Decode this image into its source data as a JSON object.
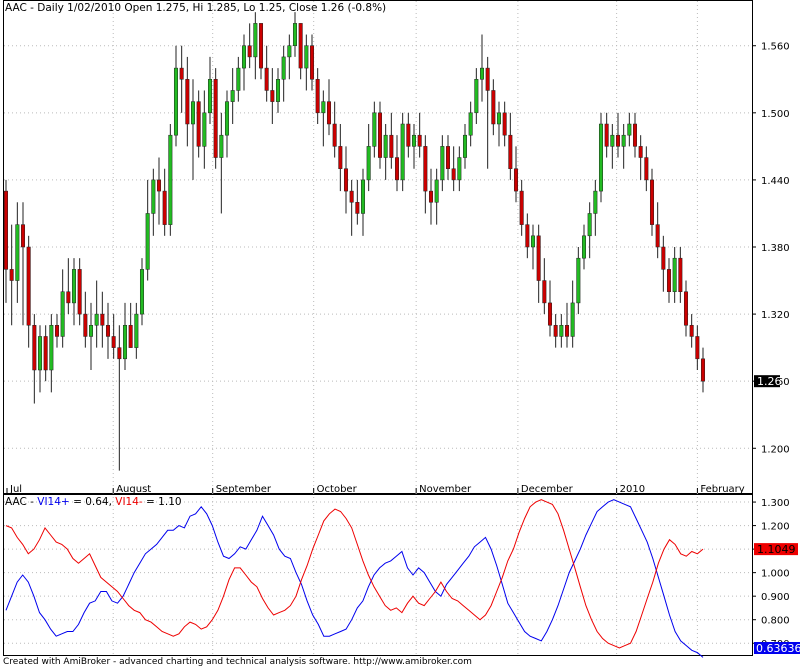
{
  "price_title": "AAC - Daily 1/02/2010 Open 1.275, Hi 1.285, Lo 1.25, Close 1.26 (-0.8%)",
  "vi_title": {
    "ticker": "AAC - ",
    "plus_label": "VI14+",
    "plus_value": " = 0.64, ",
    "minus_label": "VI14-",
    "minus_value": " = 1.10"
  },
  "footer": "Created with AmiBroker - advanced charting and technical analysis software. http://www.amibroker.com",
  "colors": {
    "up": "#22bb22",
    "down": "#cc0000",
    "vi_plus": "#0000ee",
    "vi_minus": "#ee0000",
    "grid": "#bbbbbb"
  },
  "chart_data": [
    {
      "type": "candlestick",
      "title": "AAC - Daily 1/02/2010 Open 1.275, Hi 1.285, Lo 1.25, Close 1.26 (-0.8%)",
      "ylim": [
        1.16,
        1.6
      ],
      "y_ticks": [
        "1.200",
        "1.260",
        "1.320",
        "1.380",
        "1.440",
        "1.500",
        "1.560"
      ],
      "x_labels": [
        "Jul",
        "August",
        "September",
        "October",
        "November",
        "December",
        "2010",
        "February"
      ],
      "last_price_label": "1.26",
      "grid": true,
      "ohlc": [
        [
          1.43,
          1.44,
          1.33,
          1.36
        ],
        [
          1.36,
          1.4,
          1.31,
          1.35
        ],
        [
          1.35,
          1.42,
          1.33,
          1.4
        ],
        [
          1.4,
          1.42,
          1.31,
          1.38
        ],
        [
          1.38,
          1.39,
          1.29,
          1.31
        ],
        [
          1.31,
          1.32,
          1.24,
          1.27
        ],
        [
          1.27,
          1.31,
          1.25,
          1.3
        ],
        [
          1.3,
          1.31,
          1.26,
          1.27
        ],
        [
          1.27,
          1.32,
          1.25,
          1.31
        ],
        [
          1.31,
          1.32,
          1.29,
          1.3
        ],
        [
          1.3,
          1.36,
          1.29,
          1.34
        ],
        [
          1.34,
          1.37,
          1.32,
          1.33
        ],
        [
          1.33,
          1.37,
          1.31,
          1.36
        ],
        [
          1.36,
          1.37,
          1.31,
          1.32
        ],
        [
          1.32,
          1.34,
          1.29,
          1.3
        ],
        [
          1.3,
          1.33,
          1.27,
          1.31
        ],
        [
          1.31,
          1.35,
          1.29,
          1.32
        ],
        [
          1.32,
          1.34,
          1.29,
          1.31
        ],
        [
          1.31,
          1.33,
          1.28,
          1.3
        ],
        [
          1.3,
          1.32,
          1.28,
          1.29
        ],
        [
          1.29,
          1.31,
          1.18,
          1.28
        ],
        [
          1.28,
          1.33,
          1.27,
          1.31
        ],
        [
          1.31,
          1.33,
          1.29,
          1.29
        ],
        [
          1.29,
          1.33,
          1.28,
          1.32
        ],
        [
          1.32,
          1.37,
          1.31,
          1.36
        ],
        [
          1.36,
          1.44,
          1.35,
          1.41
        ],
        [
          1.41,
          1.45,
          1.39,
          1.44
        ],
        [
          1.44,
          1.46,
          1.4,
          1.43
        ],
        [
          1.43,
          1.45,
          1.39,
          1.4
        ],
        [
          1.4,
          1.49,
          1.39,
          1.48
        ],
        [
          1.48,
          1.56,
          1.47,
          1.54
        ],
        [
          1.54,
          1.56,
          1.5,
          1.53
        ],
        [
          1.53,
          1.55,
          1.47,
          1.49
        ],
        [
          1.49,
          1.53,
          1.44,
          1.51
        ],
        [
          1.51,
          1.52,
          1.46,
          1.47
        ],
        [
          1.47,
          1.52,
          1.45,
          1.5
        ],
        [
          1.5,
          1.55,
          1.49,
          1.53
        ],
        [
          1.53,
          1.54,
          1.45,
          1.46
        ],
        [
          1.46,
          1.5,
          1.41,
          1.48
        ],
        [
          1.48,
          1.52,
          1.46,
          1.51
        ],
        [
          1.51,
          1.54,
          1.49,
          1.52
        ],
        [
          1.52,
          1.55,
          1.51,
          1.54
        ],
        [
          1.54,
          1.57,
          1.52,
          1.56
        ],
        [
          1.56,
          1.58,
          1.54,
          1.55
        ],
        [
          1.55,
          1.59,
          1.53,
          1.58
        ],
        [
          1.58,
          1.58,
          1.53,
          1.54
        ],
        [
          1.54,
          1.56,
          1.51,
          1.52
        ],
        [
          1.52,
          1.54,
          1.49,
          1.51
        ],
        [
          1.51,
          1.54,
          1.5,
          1.53
        ],
        [
          1.53,
          1.56,
          1.51,
          1.55
        ],
        [
          1.55,
          1.57,
          1.53,
          1.56
        ],
        [
          1.56,
          1.59,
          1.55,
          1.58
        ],
        [
          1.58,
          1.58,
          1.53,
          1.54
        ],
        [
          1.54,
          1.57,
          1.52,
          1.56
        ],
        [
          1.56,
          1.57,
          1.52,
          1.53
        ],
        [
          1.53,
          1.54,
          1.49,
          1.5
        ],
        [
          1.5,
          1.52,
          1.47,
          1.51
        ],
        [
          1.51,
          1.53,
          1.48,
          1.49
        ],
        [
          1.49,
          1.51,
          1.46,
          1.47
        ],
        [
          1.47,
          1.49,
          1.43,
          1.45
        ],
        [
          1.45,
          1.47,
          1.41,
          1.43
        ],
        [
          1.43,
          1.44,
          1.39,
          1.42
        ],
        [
          1.42,
          1.44,
          1.4,
          1.41
        ],
        [
          1.41,
          1.45,
          1.39,
          1.44
        ],
        [
          1.44,
          1.49,
          1.43,
          1.47
        ],
        [
          1.47,
          1.51,
          1.46,
          1.5
        ],
        [
          1.5,
          1.51,
          1.45,
          1.46
        ],
        [
          1.46,
          1.49,
          1.44,
          1.48
        ],
        [
          1.48,
          1.5,
          1.45,
          1.46
        ],
        [
          1.46,
          1.48,
          1.43,
          1.44
        ],
        [
          1.44,
          1.5,
          1.43,
          1.49
        ],
        [
          1.49,
          1.5,
          1.46,
          1.47
        ],
        [
          1.47,
          1.49,
          1.45,
          1.48
        ],
        [
          1.48,
          1.5,
          1.46,
          1.47
        ],
        [
          1.47,
          1.48,
          1.41,
          1.43
        ],
        [
          1.43,
          1.45,
          1.4,
          1.42
        ],
        [
          1.42,
          1.45,
          1.4,
          1.44
        ],
        [
          1.44,
          1.48,
          1.43,
          1.47
        ],
        [
          1.47,
          1.48,
          1.44,
          1.45
        ],
        [
          1.45,
          1.47,
          1.43,
          1.44
        ],
        [
          1.44,
          1.47,
          1.43,
          1.46
        ],
        [
          1.46,
          1.49,
          1.45,
          1.48
        ],
        [
          1.48,
          1.51,
          1.47,
          1.5
        ],
        [
          1.5,
          1.54,
          1.49,
          1.53
        ],
        [
          1.53,
          1.57,
          1.51,
          1.54
        ],
        [
          1.54,
          1.55,
          1.45,
          1.52
        ],
        [
          1.52,
          1.53,
          1.48,
          1.49
        ],
        [
          1.49,
          1.51,
          1.47,
          1.5
        ],
        [
          1.5,
          1.51,
          1.47,
          1.48
        ],
        [
          1.48,
          1.5,
          1.44,
          1.45
        ],
        [
          1.45,
          1.47,
          1.42,
          1.43
        ],
        [
          1.43,
          1.44,
          1.39,
          1.4
        ],
        [
          1.4,
          1.41,
          1.37,
          1.38
        ],
        [
          1.38,
          1.4,
          1.36,
          1.39
        ],
        [
          1.39,
          1.4,
          1.33,
          1.35
        ],
        [
          1.35,
          1.37,
          1.32,
          1.33
        ],
        [
          1.33,
          1.35,
          1.3,
          1.31
        ],
        [
          1.31,
          1.32,
          1.29,
          1.3
        ],
        [
          1.3,
          1.32,
          1.29,
          1.31
        ],
        [
          1.31,
          1.33,
          1.29,
          1.3
        ],
        [
          1.3,
          1.35,
          1.29,
          1.33
        ],
        [
          1.33,
          1.38,
          1.32,
          1.37
        ],
        [
          1.37,
          1.4,
          1.36,
          1.39
        ],
        [
          1.39,
          1.42,
          1.37,
          1.41
        ],
        [
          1.41,
          1.44,
          1.39,
          1.43
        ],
        [
          1.43,
          1.5,
          1.42,
          1.49
        ],
        [
          1.49,
          1.5,
          1.46,
          1.47
        ],
        [
          1.47,
          1.49,
          1.45,
          1.48
        ],
        [
          1.48,
          1.5,
          1.46,
          1.47
        ],
        [
          1.47,
          1.49,
          1.45,
          1.48
        ],
        [
          1.48,
          1.5,
          1.47,
          1.49
        ],
        [
          1.49,
          1.5,
          1.46,
          1.47
        ],
        [
          1.47,
          1.48,
          1.44,
          1.46
        ],
        [
          1.46,
          1.47,
          1.43,
          1.44
        ],
        [
          1.44,
          1.45,
          1.39,
          1.4
        ],
        [
          1.4,
          1.42,
          1.37,
          1.38
        ],
        [
          1.38,
          1.39,
          1.34,
          1.36
        ],
        [
          1.36,
          1.37,
          1.33,
          1.34
        ],
        [
          1.34,
          1.38,
          1.33,
          1.37
        ],
        [
          1.37,
          1.38,
          1.33,
          1.34
        ],
        [
          1.34,
          1.35,
          1.3,
          1.31
        ],
        [
          1.31,
          1.32,
          1.29,
          1.3
        ],
        [
          1.3,
          1.31,
          1.27,
          1.28
        ],
        [
          1.28,
          1.29,
          1.25,
          1.26
        ]
      ]
    },
    {
      "type": "line",
      "title": "AAC - VI14+ = 0.64, VI14- = 1.10",
      "ylim": [
        0.65,
        1.33
      ],
      "y_ticks": [
        "0.700",
        "0.800",
        "0.900",
        "1.000",
        "1.100",
        "1.200",
        "1.300"
      ],
      "grid": true,
      "last_value_labels": [
        "1.1049",
        "0.636364"
      ],
      "series": [
        {
          "name": "VI14+",
          "color": "#0000ee",
          "values": [
            0.84,
            0.9,
            0.96,
            0.99,
            0.96,
            0.9,
            0.83,
            0.8,
            0.76,
            0.73,
            0.74,
            0.75,
            0.75,
            0.78,
            0.83,
            0.87,
            0.88,
            0.92,
            0.92,
            0.88,
            0.87,
            0.9,
            0.95,
            1.0,
            1.04,
            1.08,
            1.1,
            1.12,
            1.15,
            1.18,
            1.18,
            1.2,
            1.19,
            1.24,
            1.25,
            1.28,
            1.25,
            1.2,
            1.13,
            1.07,
            1.06,
            1.08,
            1.11,
            1.1,
            1.14,
            1.18,
            1.24,
            1.2,
            1.16,
            1.1,
            1.07,
            1.06,
            1.0,
            0.95,
            0.88,
            0.82,
            0.78,
            0.73,
            0.73,
            0.74,
            0.75,
            0.76,
            0.8,
            0.85,
            0.88,
            0.94,
            0.99,
            1.02,
            1.04,
            1.05,
            1.07,
            1.09,
            1.02,
            0.99,
            1.02,
            1.0,
            0.96,
            0.92,
            0.9,
            0.95,
            0.98,
            1.01,
            1.04,
            1.07,
            1.11,
            1.13,
            1.15,
            1.1,
            1.03,
            0.95,
            0.87,
            0.83,
            0.79,
            0.75,
            0.73,
            0.72,
            0.71,
            0.75,
            0.8,
            0.86,
            0.93,
            1.0,
            1.05,
            1.1,
            1.16,
            1.21,
            1.26,
            1.28,
            1.3,
            1.31,
            1.3,
            1.29,
            1.28,
            1.23,
            1.18,
            1.13,
            1.06,
            0.98,
            0.9,
            0.82,
            0.75,
            0.71,
            0.69,
            0.67,
            0.66,
            0.64
          ]
        },
        {
          "name": "VI14-",
          "color": "#ee0000",
          "values": [
            1.2,
            1.19,
            1.15,
            1.12,
            1.08,
            1.1,
            1.14,
            1.19,
            1.16,
            1.13,
            1.12,
            1.1,
            1.06,
            1.04,
            1.06,
            1.08,
            1.03,
            0.98,
            0.96,
            0.94,
            0.92,
            0.89,
            0.86,
            0.84,
            0.83,
            0.8,
            0.79,
            0.77,
            0.75,
            0.74,
            0.73,
            0.74,
            0.77,
            0.79,
            0.78,
            0.76,
            0.77,
            0.8,
            0.84,
            0.9,
            0.97,
            1.02,
            1.02,
            0.99,
            0.96,
            0.94,
            0.89,
            0.85,
            0.82,
            0.83,
            0.84,
            0.86,
            0.9,
            0.97,
            1.03,
            1.1,
            1.16,
            1.22,
            1.25,
            1.27,
            1.26,
            1.23,
            1.19,
            1.12,
            1.05,
            0.99,
            0.94,
            0.9,
            0.86,
            0.84,
            0.85,
            0.83,
            0.87,
            0.9,
            0.87,
            0.86,
            0.89,
            0.92,
            0.96,
            0.92,
            0.89,
            0.88,
            0.86,
            0.84,
            0.82,
            0.8,
            0.82,
            0.86,
            0.92,
            0.98,
            1.05,
            1.1,
            1.17,
            1.23,
            1.28,
            1.3,
            1.31,
            1.3,
            1.29,
            1.25,
            1.18,
            1.1,
            1.02,
            0.94,
            0.86,
            0.8,
            0.75,
            0.72,
            0.7,
            0.69,
            0.68,
            0.69,
            0.7,
            0.75,
            0.82,
            0.89,
            0.96,
            1.04,
            1.1,
            1.14,
            1.12,
            1.08,
            1.07,
            1.09,
            1.08,
            1.1
          ]
        }
      ]
    }
  ]
}
